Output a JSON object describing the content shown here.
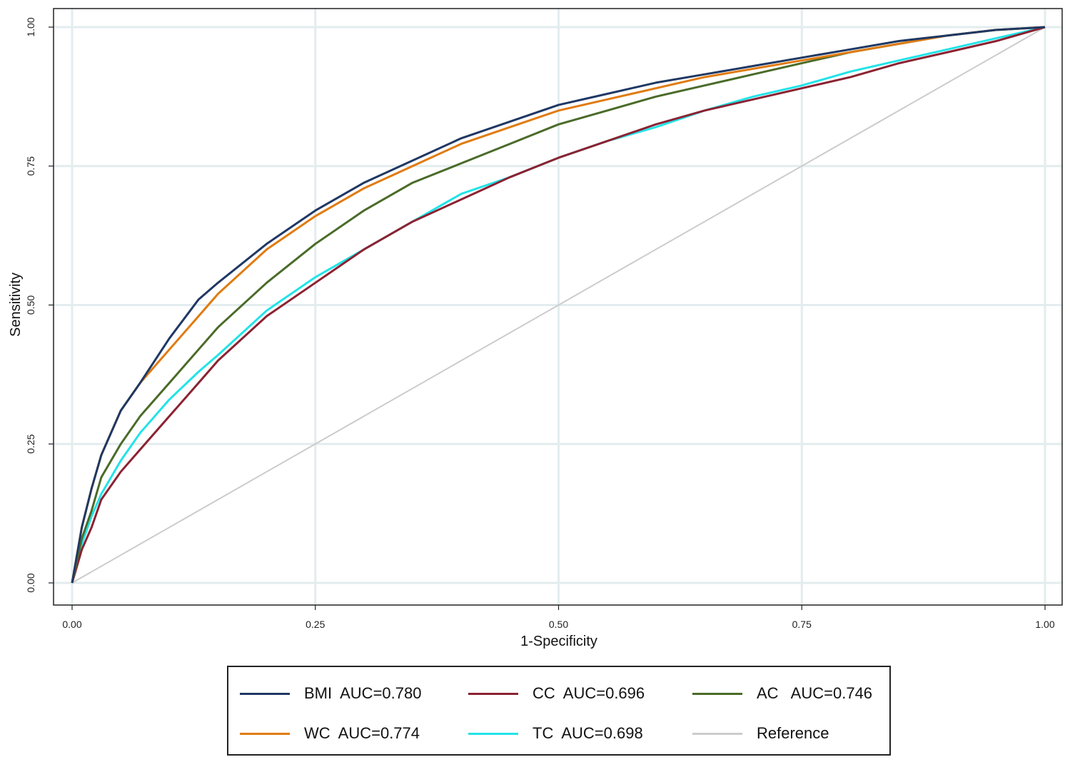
{
  "chart_data": {
    "type": "line",
    "title": "",
    "xlabel": "1-Specificity",
    "ylabel": "Sensitivity",
    "xlim": [
      0,
      1
    ],
    "ylim": [
      0,
      1
    ],
    "grid": true,
    "xticks": [
      "0.00",
      "0.25",
      "0.50",
      "0.75",
      "1.00"
    ],
    "yticks": [
      "0.00",
      "0.25",
      "0.50",
      "0.75",
      "1.00"
    ],
    "legend_position": "bottom",
    "series": [
      {
        "name": "BMI",
        "label": "BMI  AUC=0.780",
        "color": "#1f3864",
        "auc": 0.78,
        "x": [
          0,
          0.01,
          0.02,
          0.03,
          0.05,
          0.07,
          0.1,
          0.13,
          0.15,
          0.2,
          0.25,
          0.3,
          0.35,
          0.4,
          0.45,
          0.5,
          0.55,
          0.6,
          0.65,
          0.7,
          0.75,
          0.8,
          0.85,
          0.9,
          0.95,
          1.0
        ],
        "y": [
          0,
          0.1,
          0.17,
          0.23,
          0.31,
          0.36,
          0.44,
          0.51,
          0.54,
          0.61,
          0.67,
          0.72,
          0.76,
          0.8,
          0.83,
          0.86,
          0.88,
          0.9,
          0.915,
          0.93,
          0.945,
          0.96,
          0.975,
          0.985,
          0.995,
          1.0
        ]
      },
      {
        "name": "WC",
        "label": "WC  AUC=0.774",
        "color": "#e07b10",
        "auc": 0.774,
        "x": [
          0,
          0.01,
          0.02,
          0.03,
          0.05,
          0.07,
          0.1,
          0.13,
          0.15,
          0.2,
          0.25,
          0.3,
          0.35,
          0.4,
          0.45,
          0.5,
          0.55,
          0.6,
          0.65,
          0.7,
          0.75,
          0.8,
          0.85,
          0.9,
          0.95,
          1.0
        ],
        "y": [
          0,
          0.1,
          0.17,
          0.23,
          0.31,
          0.36,
          0.42,
          0.48,
          0.52,
          0.6,
          0.66,
          0.71,
          0.75,
          0.79,
          0.82,
          0.85,
          0.87,
          0.89,
          0.91,
          0.925,
          0.94,
          0.955,
          0.97,
          0.985,
          0.995,
          1.0
        ]
      },
      {
        "name": "CC",
        "label": "CC  AUC=0.696",
        "color": "#8b2232",
        "auc": 0.696,
        "x": [
          0,
          0.01,
          0.02,
          0.03,
          0.05,
          0.07,
          0.1,
          0.13,
          0.15,
          0.2,
          0.25,
          0.3,
          0.35,
          0.4,
          0.45,
          0.5,
          0.55,
          0.6,
          0.65,
          0.7,
          0.75,
          0.8,
          0.85,
          0.9,
          0.95,
          1.0
        ],
        "y": [
          0,
          0.06,
          0.1,
          0.15,
          0.2,
          0.24,
          0.3,
          0.36,
          0.4,
          0.48,
          0.54,
          0.6,
          0.65,
          0.69,
          0.73,
          0.765,
          0.795,
          0.825,
          0.85,
          0.87,
          0.89,
          0.91,
          0.935,
          0.955,
          0.975,
          1.0
        ]
      },
      {
        "name": "AC",
        "label": "AC   AUC=0.746",
        "color": "#4a6b28",
        "auc": 0.746,
        "x": [
          0,
          0.01,
          0.02,
          0.03,
          0.05,
          0.07,
          0.1,
          0.13,
          0.15,
          0.2,
          0.25,
          0.3,
          0.35,
          0.4,
          0.45,
          0.5,
          0.55,
          0.6,
          0.65,
          0.7,
          0.75,
          0.8,
          0.85,
          0.9,
          0.95,
          1.0
        ],
        "y": [
          0,
          0.08,
          0.13,
          0.19,
          0.25,
          0.3,
          0.36,
          0.42,
          0.46,
          0.54,
          0.61,
          0.67,
          0.72,
          0.755,
          0.79,
          0.825,
          0.85,
          0.875,
          0.895,
          0.915,
          0.935,
          0.955,
          0.97,
          0.985,
          0.995,
          1.0
        ]
      },
      {
        "name": "TC",
        "label": "TC  AUC=0.698",
        "color": "#22e3e8",
        "auc": 0.698,
        "x": [
          0,
          0.01,
          0.02,
          0.03,
          0.05,
          0.07,
          0.1,
          0.13,
          0.15,
          0.2,
          0.25,
          0.3,
          0.35,
          0.4,
          0.45,
          0.5,
          0.55,
          0.6,
          0.65,
          0.7,
          0.75,
          0.8,
          0.85,
          0.9,
          0.95,
          1.0
        ],
        "y": [
          0,
          0.07,
          0.12,
          0.16,
          0.22,
          0.27,
          0.33,
          0.38,
          0.41,
          0.49,
          0.55,
          0.6,
          0.65,
          0.7,
          0.73,
          0.765,
          0.795,
          0.82,
          0.85,
          0.875,
          0.895,
          0.92,
          0.94,
          0.96,
          0.98,
          1.0
        ]
      },
      {
        "name": "Reference",
        "label": "Reference",
        "color": "#cccccc",
        "x": [
          0,
          1
        ],
        "y": [
          0,
          1
        ]
      }
    ]
  },
  "legend": {
    "items": [
      {
        "text": "BMI  AUC=0.780",
        "color": "#1f3864"
      },
      {
        "text": "CC  AUC=0.696",
        "color": "#8b2232"
      },
      {
        "text": "AC   AUC=0.746",
        "color": "#4a6b28"
      },
      {
        "text": "WC  AUC=0.774",
        "color": "#e07b10"
      },
      {
        "text": "TC  AUC=0.698",
        "color": "#22e3e8"
      },
      {
        "text": "Reference",
        "color": "#cccccc"
      }
    ]
  }
}
